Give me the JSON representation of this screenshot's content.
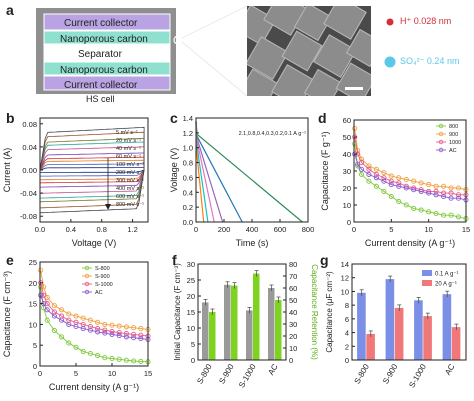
{
  "figure": {
    "panel_labels": [
      "a",
      "b",
      "c",
      "d",
      "e",
      "f",
      "g"
    ]
  },
  "schematic": {
    "layers": [
      "Current collector",
      "Nanoporous carbon",
      "Separator",
      "Nanoporous carbon",
      "Current collector"
    ],
    "cell_label": "HS cell",
    "ions": [
      {
        "label": "H⁺ 0.028 nm",
        "color": "#d12f3a"
      },
      {
        "label": "SO₄²⁻ 0.24 nm",
        "color": "#5bc8e8"
      }
    ]
  },
  "chart_data": [
    {
      "id": "b",
      "type": "line",
      "xlabel": "Voltage (V)",
      "ylabel": "Current (A)",
      "xlim": [
        0,
        1.4
      ],
      "ylim": [
        -0.09,
        0.09
      ],
      "xticks": [
        "0.0",
        "0.4",
        "0.8",
        "1.2"
      ],
      "yticks": [
        "-0.08",
        "-0.04",
        "0.00",
        "0.04",
        "0.08"
      ],
      "legend": [
        "5 mV s⁻¹",
        "20 mV s⁻¹",
        "40 mV s⁻¹",
        "60 mV s⁻¹",
        "100 mV s⁻¹",
        "200 mV s⁻¹",
        "300 mV s⁻¹",
        "400 mV s⁻¹",
        "600 mV s⁻¹",
        "800 mV s⁻¹"
      ],
      "series": [
        {
          "name": "5 mV s⁻¹",
          "amplitude": 0.004
        },
        {
          "name": "20 mV s⁻¹",
          "amplitude": 0.01
        },
        {
          "name": "40 mV s⁻¹",
          "amplitude": 0.016
        },
        {
          "name": "60 mV s⁻¹",
          "amplitude": 0.021
        },
        {
          "name": "100 mV s⁻¹",
          "amplitude": 0.028
        },
        {
          "name": "200 mV s⁻¹",
          "amplitude": 0.038
        },
        {
          "name": "300 mV s⁻¹",
          "amplitude": 0.046
        },
        {
          "name": "400 mV s⁻¹",
          "amplitude": 0.052
        },
        {
          "name": "600 mV s⁻¹",
          "amplitude": 0.062
        },
        {
          "name": "800 mV s⁻¹",
          "amplitude": 0.07
        }
      ]
    },
    {
      "id": "c",
      "type": "line",
      "xlabel": "Time (s)",
      "ylabel": "Voltage (V)",
      "xlim": [
        0,
        800
      ],
      "ylim": [
        0,
        1.4
      ],
      "xticks": [
        "0",
        "200",
        "400",
        "600",
        "800"
      ],
      "yticks": [
        "0.0",
        "0.2",
        "0.4",
        "0.6",
        "0.8",
        "1.0",
        "1.2",
        "1.4"
      ],
      "annotation": "2.1,0.8,0.4,0.3,0.2,0.1 A g⁻¹",
      "series": [
        {
          "current": "0.1",
          "x": [
            0,
            8,
            760
          ],
          "y": [
            1.35,
            1.18,
            0.0
          ]
        },
        {
          "current": "0.2",
          "x": [
            0,
            6,
            330
          ],
          "y": [
            1.35,
            1.16,
            0.0
          ]
        },
        {
          "current": "0.3",
          "x": [
            0,
            5,
            190
          ],
          "y": [
            1.35,
            1.14,
            0.0
          ]
        },
        {
          "current": "0.4",
          "x": [
            0,
            4,
            130
          ],
          "y": [
            1.35,
            1.12,
            0.0
          ]
        },
        {
          "current": "0.8",
          "x": [
            0,
            3,
            85
          ],
          "y": [
            1.35,
            1.08,
            0.0
          ]
        },
        {
          "current": "2.1",
          "x": [
            0,
            2,
            55
          ],
          "y": [
            1.35,
            1.0,
            0.0
          ]
        }
      ]
    },
    {
      "id": "d",
      "type": "scatter",
      "xlabel": "Current density (A g⁻¹)",
      "ylabel": "Capacitance (F g⁻¹)",
      "xlim": [
        0,
        15
      ],
      "ylim": [
        0,
        60
      ],
      "xticks": [
        "0",
        "5",
        "10",
        "15"
      ],
      "yticks": [
        "0",
        "10",
        "20",
        "30",
        "40",
        "50",
        "60"
      ],
      "series": [
        {
          "name": "800",
          "color": "#7ec93a",
          "x": [
            0.1,
            0.5,
            1,
            2,
            3,
            4,
            5,
            6,
            7,
            8,
            9,
            10,
            11,
            12,
            13,
            14,
            15
          ],
          "y": [
            46,
            33,
            28,
            24,
            21,
            18,
            15,
            12,
            10,
            8,
            7,
            6,
            5,
            4,
            4,
            3,
            2
          ]
        },
        {
          "name": "900",
          "color": "#f0a040",
          "x": [
            0.1,
            0.5,
            1,
            2,
            3,
            4,
            5,
            6,
            7,
            8,
            9,
            10,
            11,
            12,
            13,
            14,
            15
          ],
          "y": [
            55,
            42,
            37,
            33,
            31,
            29,
            27,
            26,
            25,
            24,
            23,
            22,
            21,
            21,
            20,
            20,
            19
          ]
        },
        {
          "name": "1000",
          "color": "#e85a8a",
          "x": [
            0.1,
            0.5,
            1,
            2,
            3,
            4,
            5,
            6,
            7,
            8,
            9,
            10,
            11,
            12,
            13,
            14,
            15
          ],
          "y": [
            50,
            40,
            35,
            31,
            28,
            26,
            24,
            23,
            21,
            20,
            19,
            18,
            18,
            17,
            17,
            16,
            16
          ]
        },
        {
          "name": "AC",
          "color": "#8c5ad0",
          "x": [
            0.1,
            0.5,
            1,
            2,
            3,
            4,
            5,
            6,
            7,
            8,
            9,
            10,
            11,
            12,
            13,
            14,
            15
          ],
          "y": [
            40,
            34,
            31,
            28,
            26,
            24,
            22,
            21,
            20,
            19,
            18,
            17,
            16,
            15,
            14,
            14,
            13
          ]
        }
      ]
    },
    {
      "id": "e",
      "type": "scatter",
      "xlabel": "Current density (A g⁻¹)",
      "ylabel": "Capacitance (F cm⁻³)",
      "xlim": [
        0,
        15
      ],
      "ylim": [
        0,
        25
      ],
      "xticks": [
        "0",
        "5",
        "10",
        "15"
      ],
      "yticks": [
        "0",
        "5",
        "10",
        "15",
        "20",
        "25"
      ],
      "series": [
        {
          "name": "S-800",
          "color": "#7ec93a",
          "x": [
            0.1,
            0.5,
            1,
            2,
            3,
            4,
            5,
            6,
            7,
            8,
            9,
            10,
            11,
            12,
            13,
            14,
            15
          ],
          "y": [
            19,
            14,
            11,
            8.5,
            7,
            5.5,
            4.5,
            3.5,
            3,
            2.5,
            2,
            1.8,
            1.6,
            1.4,
            1.2,
            1.1,
            1
          ]
        },
        {
          "name": "S-900",
          "color": "#f0a040",
          "x": [
            0.1,
            0.5,
            1,
            2,
            3,
            4,
            5,
            6,
            7,
            8,
            9,
            10,
            11,
            12,
            13,
            14,
            15
          ],
          "y": [
            23,
            19,
            16.5,
            14.5,
            13.5,
            12.5,
            12,
            11.5,
            11,
            10.5,
            10,
            9.8,
            9.6,
            9.4,
            9.2,
            9,
            8.8
          ]
        },
        {
          "name": "S-1000",
          "color": "#e85a8a",
          "x": [
            0.1,
            0.5,
            1,
            2,
            3,
            4,
            5,
            6,
            7,
            8,
            9,
            10,
            11,
            12,
            13,
            14,
            15
          ],
          "y": [
            20,
            17,
            15,
            13,
            12,
            11,
            10.5,
            10,
            9.5,
            9,
            8.6,
            8.3,
            8,
            7.8,
            7.6,
            7.4,
            7.2
          ]
        },
        {
          "name": "AC",
          "color": "#8c5ad0",
          "x": [
            0.1,
            0.5,
            1,
            2,
            3,
            4,
            5,
            6,
            7,
            8,
            9,
            10,
            11,
            12,
            13,
            14,
            15
          ],
          "y": [
            17,
            15,
            13.5,
            12,
            11,
            10,
            9.5,
            9,
            8.6,
            8.2,
            7.9,
            7.6,
            7.3,
            7,
            6.8,
            6.6,
            6.4
          ]
        }
      ]
    },
    {
      "id": "f",
      "type": "bar",
      "categories": [
        "S-800",
        "S-900",
        "S-1000",
        "AC"
      ],
      "ylabel": "Initial Capacitance (F cm⁻³)",
      "y2label": "Capacitance Retention (%)",
      "ylim": [
        0,
        30
      ],
      "y2lim": [
        0,
        80
      ],
      "yticks": [
        "0",
        "5",
        "10",
        "15",
        "20",
        "25",
        "30"
      ],
      "y2ticks": [
        "0",
        "10",
        "20",
        "30",
        "40",
        "50",
        "60",
        "70",
        "80"
      ],
      "series": [
        {
          "axis": "left",
          "color": "#9a9a9a",
          "values": [
            18,
            23.5,
            15.5,
            22.5
          ]
        },
        {
          "axis": "right",
          "color": "#7ed321",
          "values": [
            40,
            62,
            72,
            50
          ]
        }
      ]
    },
    {
      "id": "g",
      "type": "bar",
      "categories": [
        "S-800",
        "S-900",
        "S-1000",
        "AC"
      ],
      "ylabel": "Capacitance (μF cm⁻²)",
      "ylim": [
        0,
        14
      ],
      "yticks": [
        "0",
        "2",
        "4",
        "6",
        "8",
        "10",
        "12",
        "14"
      ],
      "legend": [
        "0.1 A g⁻¹",
        "20 A g⁻¹"
      ],
      "series": [
        {
          "name": "0.1 A g⁻¹",
          "color": "#7b8fe6",
          "values": [
            9.8,
            11.8,
            8.7,
            9.6
          ]
        },
        {
          "name": "20 A g⁻¹",
          "color": "#f07878",
          "values": [
            3.8,
            7.6,
            6.4,
            4.8
          ]
        }
      ]
    }
  ]
}
